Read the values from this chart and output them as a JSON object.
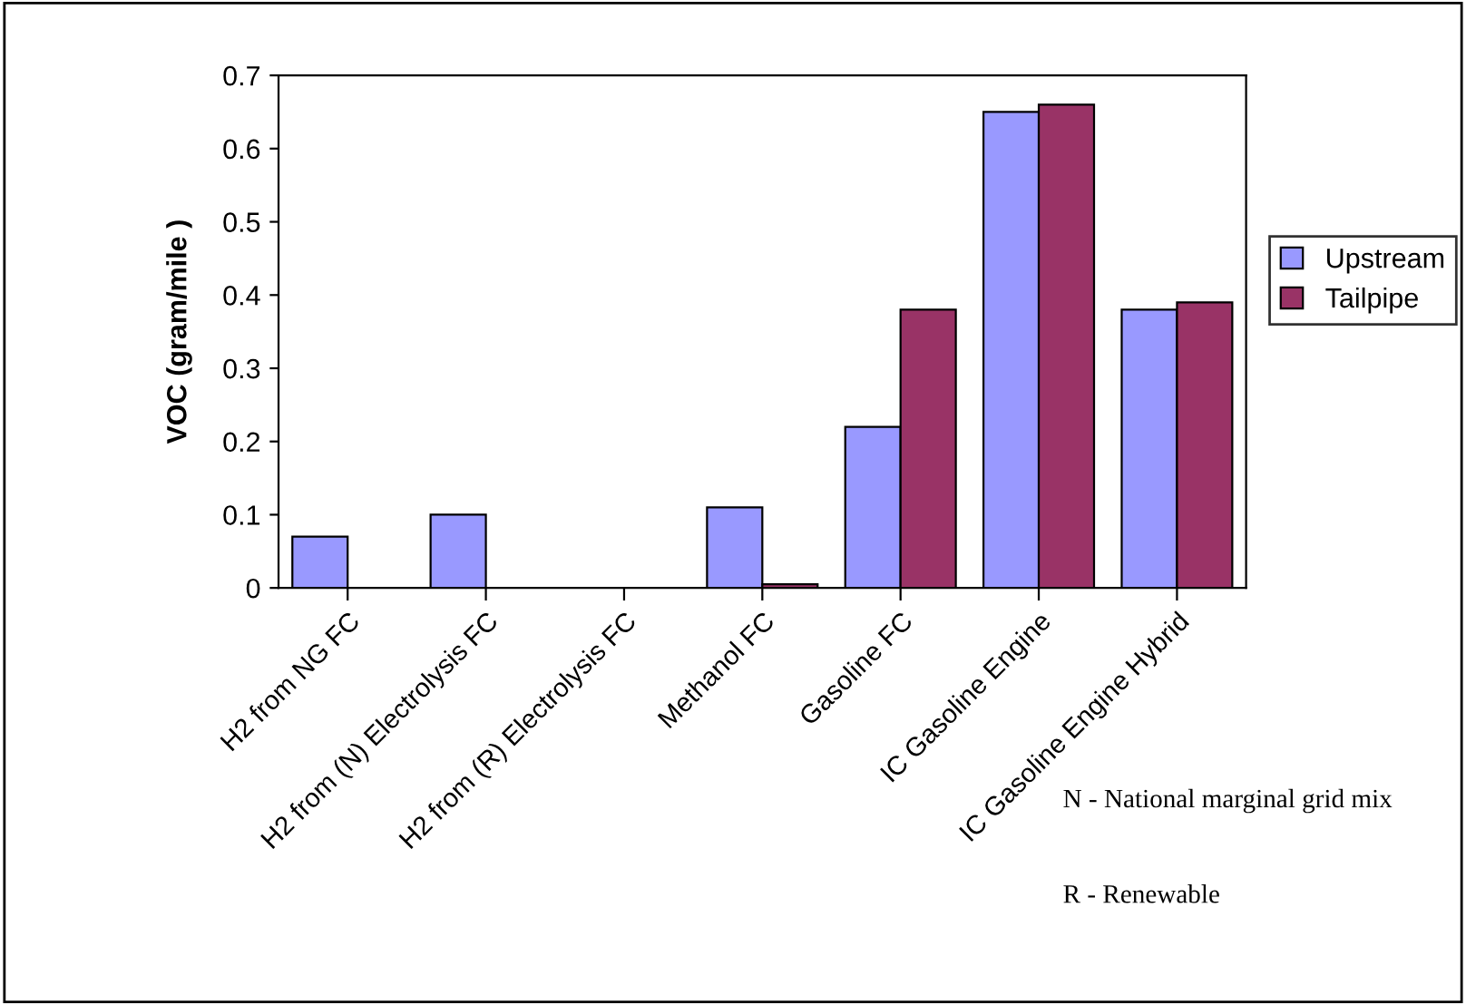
{
  "chart_data": {
    "type": "bar",
    "ylabel": "VOC (gram/mile )",
    "categories": [
      "H2 from NG FC",
      "H2 from (N) Electrolysis FC",
      "H2 from (R) Electrolysis FC",
      "Methanol FC",
      "Gasoline FC",
      "IC Gasoline Engine",
      "IC Gasoline Engine Hybrid"
    ],
    "series": [
      {
        "name": "Upstream",
        "color": "#9999ff",
        "values": [
          0.07,
          0.1,
          null,
          0.11,
          0.22,
          0.65,
          0.38
        ]
      },
      {
        "name": "Tailpipe",
        "color": "#993366",
        "values": [
          null,
          null,
          null,
          0.005,
          0.38,
          0.66,
          0.39
        ]
      }
    ],
    "ylim": [
      0,
      0.7
    ],
    "yticks": [
      {
        "value": 0,
        "label": "0"
      },
      0.1,
      0.2,
      0.3,
      0.4,
      0.5,
      0.6,
      0.7
    ],
    "grid": false,
    "legend": "right",
    "annotations": [
      "N - National marginal grid mix",
      "R - Renewable"
    ]
  }
}
